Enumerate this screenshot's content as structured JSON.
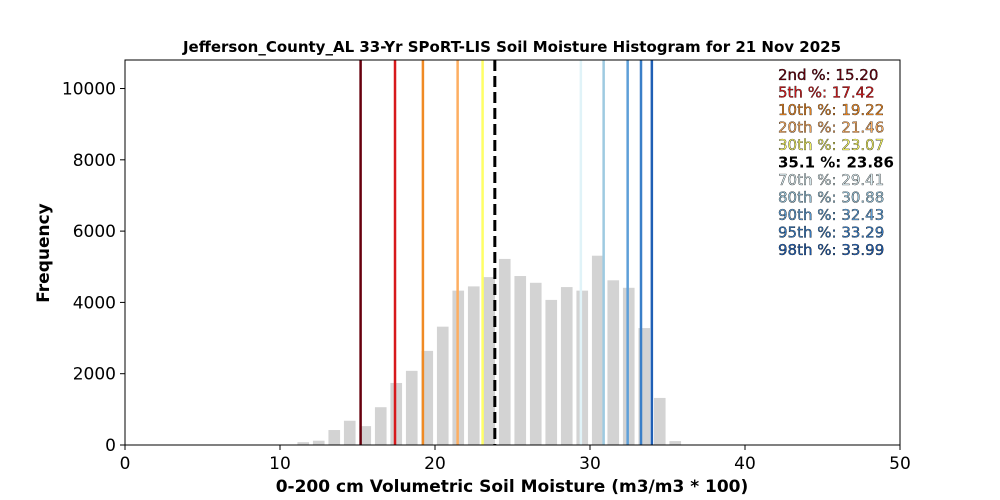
{
  "chart_data": {
    "type": "bar",
    "title": "Jefferson_County_AL 33-Yr SPoRT-LIS Soil Moisture Histogram for 21 Nov 2025",
    "xlabel": "0-200 cm Volumetric Soil Moisture (m3/m3 * 100)",
    "ylabel": "Frequency",
    "xlim": [
      0,
      50
    ],
    "ylim": [
      0,
      10800
    ],
    "xticks": [
      0,
      10,
      20,
      30,
      40,
      50
    ],
    "yticks": [
      0,
      2000,
      4000,
      6000,
      8000,
      10000
    ],
    "bar_color": "#d3d3d3",
    "bins": [
      {
        "x": 11.5,
        "count": 80
      },
      {
        "x": 12.5,
        "count": 120
      },
      {
        "x": 13.5,
        "count": 420
      },
      {
        "x": 14.5,
        "count": 680
      },
      {
        "x": 15.5,
        "count": 530
      },
      {
        "x": 16.5,
        "count": 1060
      },
      {
        "x": 17.5,
        "count": 1740
      },
      {
        "x": 18.5,
        "count": 2080
      },
      {
        "x": 19.5,
        "count": 2640
      },
      {
        "x": 20.5,
        "count": 3320
      },
      {
        "x": 21.5,
        "count": 4330
      },
      {
        "x": 22.5,
        "count": 4450
      },
      {
        "x": 23.5,
        "count": 4710
      },
      {
        "x": 24.5,
        "count": 5220
      },
      {
        "x": 25.5,
        "count": 4740
      },
      {
        "x": 26.5,
        "count": 4550
      },
      {
        "x": 27.5,
        "count": 4070
      },
      {
        "x": 28.5,
        "count": 4430
      },
      {
        "x": 29.5,
        "count": 4330
      },
      {
        "x": 30.5,
        "count": 5310
      },
      {
        "x": 31.5,
        "count": 4620
      },
      {
        "x": 32.5,
        "count": 4410
      },
      {
        "x": 33.5,
        "count": 3280
      },
      {
        "x": 34.5,
        "count": 1320
      },
      {
        "x": 35.5,
        "count": 110
      }
    ],
    "percentiles": [
      {
        "label": "2nd %: 15.20",
        "value": 15.2,
        "color": "#67000d",
        "dashed": false
      },
      {
        "label": "5th %: 17.42",
        "value": 17.42,
        "color": "#d7191c",
        "dashed": false
      },
      {
        "label": "10th %: 19.22",
        "value": 19.22,
        "color": "#f08a24",
        "dashed": false
      },
      {
        "label": "20th %: 21.46",
        "value": 21.46,
        "color": "#fdae61",
        "dashed": false
      },
      {
        "label": "30th %: 23.07",
        "value": 23.07,
        "color": "#ffff66",
        "dashed": false
      },
      {
        "label": "35.1 %: 23.86",
        "value": 23.86,
        "color": "#000000",
        "dashed": true
      },
      {
        "label": "70th %: 29.41",
        "value": 29.41,
        "color": "#e0f3f8",
        "dashed": false
      },
      {
        "label": "80th %: 30.88",
        "value": 30.88,
        "color": "#9ecae1",
        "dashed": false
      },
      {
        "label": "90th %: 32.43",
        "value": 32.43,
        "color": "#5e9fd8",
        "dashed": false
      },
      {
        "label": "95th %: 33.29",
        "value": 33.29,
        "color": "#3a7fc8",
        "dashed": false
      },
      {
        "label": "98th %: 33.99",
        "value": 33.99,
        "color": "#1f5fb5",
        "dashed": false
      }
    ]
  }
}
